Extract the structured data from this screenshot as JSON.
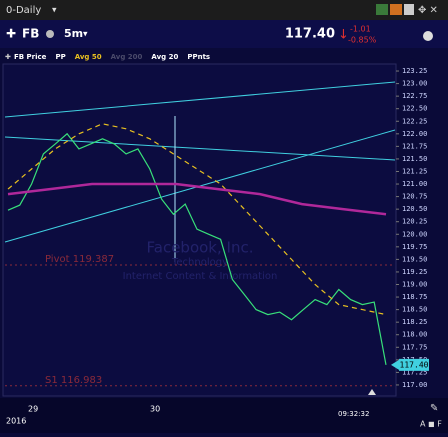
{
  "header": {
    "view": "0-Daily",
    "symbol": "FB",
    "interval": "5m",
    "price": "117.40",
    "change": "-1.01",
    "change_pct": "-0.85%"
  },
  "legend": [
    {
      "name": "FB Price",
      "color": "#ffffff"
    },
    {
      "name": "PP",
      "color": "#ffffff"
    },
    {
      "name": "Avg 50",
      "color": "#e8c020"
    },
    {
      "name": "Avg 200",
      "color": "#4a4a6a"
    },
    {
      "name": "Avg 20",
      "color": "#ffffff"
    },
    {
      "name": "PPnts",
      "color": "#ffffff"
    }
  ],
  "chart_data": {
    "type": "line",
    "ylim": [
      116.8,
      123.37
    ],
    "yticks": [
      123.25,
      {
        "value": 123,
        "label": "123.00"
      },
      122.75,
      {
        "value": 122.5,
        "label": "122.50"
      },
      122.25,
      {
        "value": 122,
        "label": "122.00"
      },
      121.75,
      {
        "value": 121.5,
        "label": "121.50"
      },
      121.25,
      {
        "value": 121,
        "label": "121.00"
      },
      120.75,
      {
        "value": 120.5,
        "label": "120.50"
      },
      120.25,
      {
        "value": 120,
        "label": "120.00"
      },
      119.75,
      {
        "value": 119.5,
        "label": "119.50"
      },
      119.25,
      {
        "value": 119,
        "label": "119.00"
      },
      118.75,
      {
        "value": 118.5,
        "label": "118.50"
      },
      118.25,
      {
        "value": 118,
        "label": "118.00"
      },
      117.75,
      {
        "value": 117.5,
        "label": "117.50"
      },
      117.25,
      {
        "value": 117,
        "label": "117.00"
      }
    ],
    "series": [
      {
        "name": "FB Price",
        "color": "#38e07a",
        "values": [
          120.48,
          120.58,
          121.0,
          121.6,
          121.8,
          122.0,
          121.7,
          121.8,
          121.9,
          121.8,
          121.6,
          121.7,
          121.3,
          120.7,
          120.4,
          120.6,
          120.1,
          120.0,
          119.9,
          119.1,
          118.8,
          118.5,
          118.4,
          118.45,
          118.3,
          118.5,
          118.7,
          118.6,
          118.9,
          118.7,
          118.6,
          118.65,
          117.4
        ]
      },
      {
        "name": "Avg 50",
        "color": "#e8c020",
        "values": [
          120.9,
          121.3,
          121.7,
          122.0,
          122.2,
          122.1,
          121.9,
          121.6,
          121.3,
          121.0,
          120.5,
          120.0,
          119.5,
          119.0,
          118.6,
          118.5,
          118.4
        ]
      },
      {
        "name": "Avg 200",
        "color": "#b0289a",
        "values": [
          120.8,
          120.9,
          121.0,
          121.0,
          121.0,
          120.9,
          120.8,
          120.6,
          120.5,
          120.4
        ]
      }
    ],
    "levels": [
      {
        "label": "Pivot 119.387",
        "value": 119.387,
        "color": "#8a2a3a"
      },
      {
        "label": "S1 116.983",
        "value": 116.983,
        "color": "#8a2a3a"
      }
    ],
    "watermark": [
      "Facebook, Inc.",
      "Technology",
      "Internet Content & Information"
    ],
    "x_labels": [
      "29",
      "30"
    ],
    "year": "2016",
    "time": "09:32:32"
  }
}
